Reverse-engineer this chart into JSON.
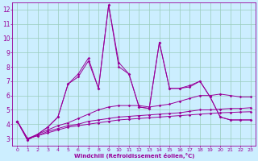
{
  "xlabel": "Windchill (Refroidissement éolien,°C)",
  "background_color": "#cceeff",
  "grid_color": "#99ccbb",
  "line_color": "#990099",
  "x": [
    0,
    1,
    2,
    3,
    4,
    5,
    6,
    7,
    8,
    9,
    10,
    11,
    12,
    13,
    14,
    15,
    16,
    17,
    18,
    19,
    20,
    21,
    22,
    23
  ],
  "line1": [
    4.2,
    2.9,
    3.3,
    3.8,
    4.5,
    6.8,
    7.5,
    8.6,
    6.5,
    12.3,
    8.3,
    7.5,
    5.2,
    5.1,
    9.7,
    6.5,
    6.5,
    6.7,
    7.0,
    5.9,
    4.5,
    4.3,
    4.3,
    4.3
  ],
  "line2": [
    4.2,
    2.9,
    3.3,
    3.8,
    4.5,
    6.8,
    7.3,
    8.4,
    6.5,
    12.3,
    8.0,
    7.5,
    5.2,
    5.1,
    9.7,
    6.5,
    6.5,
    6.6,
    7.0,
    5.9,
    4.5,
    4.3,
    4.3,
    4.3
  ],
  "line3": [
    4.2,
    3.0,
    3.3,
    3.6,
    3.9,
    4.1,
    4.4,
    4.7,
    5.0,
    5.2,
    5.3,
    5.3,
    5.3,
    5.2,
    5.3,
    5.4,
    5.6,
    5.8,
    6.0,
    6.0,
    6.1,
    6.0,
    5.9,
    5.9
  ],
  "line4": [
    4.2,
    3.0,
    3.2,
    3.5,
    3.7,
    3.9,
    4.0,
    4.2,
    4.3,
    4.4,
    4.5,
    4.55,
    4.6,
    4.65,
    4.7,
    4.75,
    4.8,
    4.9,
    5.0,
    5.0,
    5.05,
    5.1,
    5.1,
    5.15
  ],
  "line5": [
    4.2,
    3.0,
    3.2,
    3.4,
    3.6,
    3.8,
    3.9,
    4.0,
    4.1,
    4.2,
    4.3,
    4.35,
    4.4,
    4.45,
    4.5,
    4.55,
    4.6,
    4.65,
    4.7,
    4.75,
    4.8,
    4.82,
    4.85,
    4.87
  ],
  "xlim": [
    -0.5,
    23.5
  ],
  "ylim": [
    2.5,
    12.5
  ],
  "yticks": [
    3,
    4,
    5,
    6,
    7,
    8,
    9,
    10,
    11,
    12
  ],
  "xticks": [
    0,
    1,
    2,
    3,
    4,
    5,
    6,
    7,
    8,
    9,
    10,
    11,
    12,
    13,
    14,
    15,
    16,
    17,
    18,
    19,
    20,
    21,
    22,
    23
  ]
}
